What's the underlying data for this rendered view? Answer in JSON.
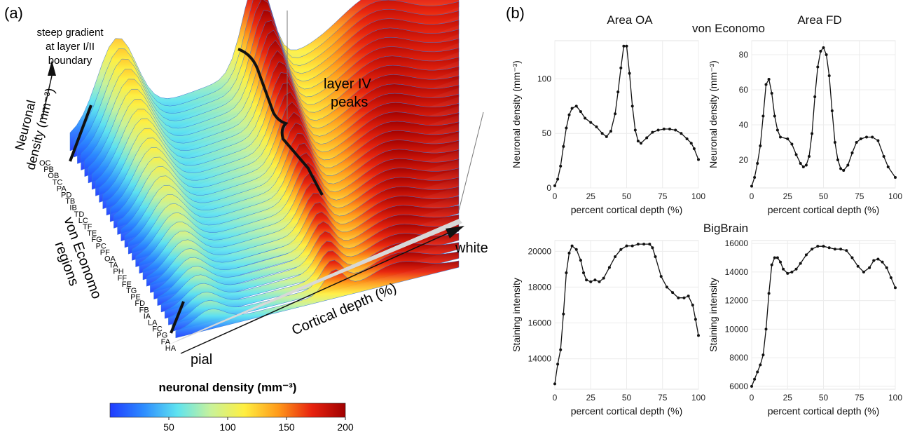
{
  "panel_a": {
    "label": "(a)",
    "annotations": {
      "gradient": [
        "steep gradient",
        "at layer I/II",
        "boundary"
      ],
      "peaks": [
        "layer IV",
        "peaks"
      ]
    },
    "axes": {
      "z_label": [
        "Neuronal",
        "density (mm⁻³)"
      ],
      "y_label": [
        "von Economo",
        "regions"
      ],
      "x_label": "Cortical depth (%)",
      "x_start": "pial",
      "x_end": "white"
    },
    "regions": [
      "OC",
      "PB",
      "OB",
      "TC",
      "PA",
      "PD",
      "TB",
      "IB",
      "TD",
      "LC",
      "TF",
      "TE",
      "FG",
      "PC",
      "PF",
      "OA",
      "TA",
      "PH",
      "FF",
      "FE",
      "TG",
      "PE",
      "FD",
      "FB",
      "IA",
      "LA",
      "FC",
      "PG",
      "FA",
      "HA"
    ],
    "colorbar": {
      "title": "neuronal density (mm⁻³)",
      "min": 0,
      "max": 200,
      "ticks": [
        "50",
        "100",
        "150",
        "200"
      ],
      "colors": [
        "#1f3bff",
        "#2d8cff",
        "#5ee3f0",
        "#c8f29a",
        "#ffef40",
        "#ff9a1a",
        "#e8220e",
        "#a00000"
      ]
    }
  },
  "panel_b": {
    "label": "(b)",
    "col_titles": [
      "Area OA",
      "Area FD"
    ],
    "row_titles": [
      "von Economo",
      "BigBrain"
    ]
  },
  "chart_data": [
    {
      "type": "line",
      "name": "vonEconomo-OA",
      "xlabel": "percent cortical depth (%)",
      "ylabel": "Neuronal density (mm⁻³)",
      "xlim": [
        0,
        100
      ],
      "ylim": [
        0,
        135
      ],
      "xticks": [
        0,
        25,
        50,
        75,
        100
      ],
      "yticks": [
        0,
        50,
        100
      ],
      "x": [
        0,
        2,
        4,
        6,
        8,
        10,
        12,
        15,
        18,
        21,
        25,
        29,
        33,
        36,
        39,
        42,
        44,
        46,
        48,
        50,
        52,
        54,
        56,
        58,
        60,
        64,
        68,
        72,
        76,
        80,
        84,
        88,
        92,
        95,
        97,
        100
      ],
      "y": [
        2,
        8,
        20,
        38,
        55,
        67,
        73,
        75,
        70,
        64,
        60,
        56,
        50,
        47,
        52,
        68,
        88,
        110,
        130,
        130,
        105,
        75,
        53,
        43,
        41,
        46,
        51,
        53,
        54,
        54,
        53,
        50,
        45,
        41,
        36,
        26
      ]
    },
    {
      "type": "line",
      "name": "vonEconomo-FD",
      "xlabel": "percent cortical depth (%)",
      "ylabel": "Neuronal density (mm⁻³)",
      "xlim": [
        0,
        100
      ],
      "ylim": [
        4,
        88
      ],
      "xticks": [
        0,
        25,
        50,
        75,
        100
      ],
      "yticks": [
        20,
        40,
        60,
        80
      ],
      "x": [
        0,
        2,
        4,
        6,
        8,
        10,
        12,
        14,
        16,
        18,
        20,
        25,
        28,
        31,
        34,
        36,
        38,
        40,
        42,
        44,
        46,
        48,
        50,
        52,
        54,
        56,
        58,
        60,
        62,
        64,
        67,
        70,
        73,
        76,
        80,
        84,
        88,
        92,
        95,
        100
      ],
      "y": [
        5,
        10,
        18,
        28,
        45,
        63,
        66,
        58,
        45,
        37,
        33,
        32,
        29,
        23,
        18,
        16,
        17,
        22,
        35,
        56,
        73,
        82,
        84,
        80,
        68,
        48,
        30,
        20,
        15,
        14,
        17,
        24,
        30,
        32,
        33,
        33,
        31,
        22,
        16,
        10
      ]
    },
    {
      "type": "line",
      "name": "BigBrain-OA",
      "xlabel": "percent cortical depth (%)",
      "ylabel": "Staining intensity",
      "xlim": [
        0,
        100
      ],
      "ylim": [
        12300,
        20600
      ],
      "xticks": [
        0,
        25,
        50,
        75,
        100
      ],
      "yticks": [
        14000,
        16000,
        18000,
        20000
      ],
      "x": [
        0,
        2,
        4,
        6,
        8,
        10,
        12,
        15,
        18,
        20,
        22,
        25,
        28,
        31,
        34,
        38,
        42,
        46,
        50,
        54,
        58,
        62,
        66,
        68,
        70,
        74,
        78,
        82,
        86,
        90,
        93,
        96,
        98,
        100
      ],
      "y": [
        12600,
        13700,
        14500,
        16500,
        18800,
        19900,
        20300,
        20100,
        19500,
        18800,
        18400,
        18300,
        18400,
        18300,
        18500,
        19100,
        19700,
        20100,
        20300,
        20300,
        20400,
        20400,
        20400,
        20200,
        19700,
        18600,
        18000,
        17700,
        17400,
        17400,
        17500,
        17000,
        16200,
        15300
      ]
    },
    {
      "type": "line",
      "name": "BigBrain-FD",
      "xlabel": "percent cortical depth (%)",
      "ylabel": "Staining intensity",
      "xlim": [
        0,
        100
      ],
      "ylim": [
        5800,
        16200
      ],
      "xticks": [
        0,
        25,
        50,
        75,
        100
      ],
      "yticks": [
        6000,
        8000,
        10000,
        12000,
        14000,
        16000
      ],
      "x": [
        0,
        2,
        4,
        6,
        8,
        10,
        12,
        14,
        16,
        18,
        20,
        22,
        25,
        28,
        31,
        34,
        38,
        42,
        46,
        50,
        54,
        58,
        62,
        66,
        70,
        74,
        78,
        82,
        85,
        88,
        91,
        94,
        97,
        100
      ],
      "y": [
        6000,
        6500,
        7000,
        7500,
        8200,
        10000,
        12500,
        14500,
        15000,
        15000,
        14700,
        14200,
        13900,
        14000,
        14200,
        14600,
        15200,
        15600,
        15800,
        15800,
        15700,
        15600,
        15600,
        15500,
        15000,
        14400,
        14000,
        14300,
        14800,
        14900,
        14700,
        14300,
        13600,
        12900
      ]
    }
  ]
}
